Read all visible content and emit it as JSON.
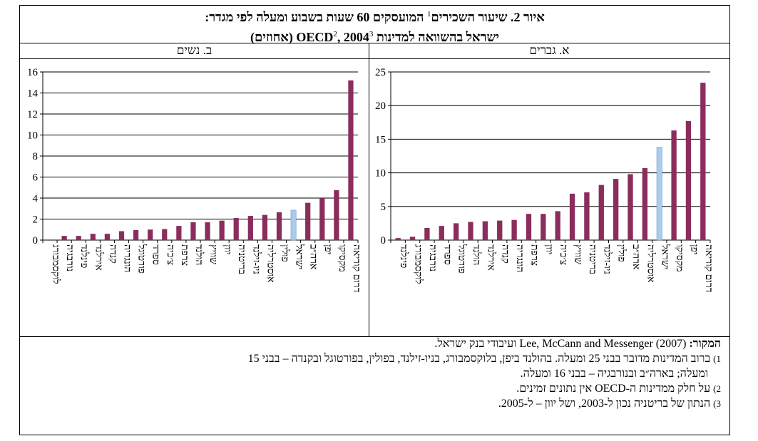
{
  "title": {
    "line1_main": "איור 2. שיעור השכירים",
    "line1_sup": "1",
    "line1_rest": " המועסקים 60 שעות בשבוע ומעלה לפי מגדר:",
    "line2_main": "ישראל בהשוואה למדינות OECD",
    "line2_sup1": "2",
    "line2_year": ", 2004",
    "line2_sup2": "3",
    "line2_rest": " (אחוזים)"
  },
  "panel_headers": {
    "men": "א. גברים",
    "women": "ב. נשים"
  },
  "colors": {
    "bar": "#8b2d5c",
    "highlight": "#a9cdef",
    "grid": "#000000"
  },
  "chart_data": [
    {
      "type": "bar",
      "title": "א. גברים",
      "ylim": [
        0,
        25
      ],
      "yticks": [
        0,
        5,
        10,
        15,
        20,
        25
      ],
      "grid": true,
      "highlight_category": "ישראל",
      "categories": [
        "פינלנד",
        "לוקסמבורג",
        "נורבגיה",
        "ספרד",
        "פורטוגל",
        "הולנד",
        "אירלנד",
        "קנדה",
        "הונגריה",
        "צרפת",
        "יוון",
        "צ׳כיה",
        "שוויץ",
        "בריטניה",
        "ניו-זילנד",
        "פולין",
        "ארה״ב",
        "אוסטרליה",
        "ישראל",
        "מקסיקו",
        "יפן",
        "דרום קוריאה"
      ],
      "values": [
        0.3,
        0.5,
        1.8,
        2.1,
        2.5,
        2.7,
        2.8,
        2.9,
        3.0,
        3.9,
        3.9,
        4.3,
        6.9,
        7.1,
        8.2,
        9.1,
        9.8,
        10.7,
        13.8,
        16.3,
        17.7,
        23.4
      ]
    },
    {
      "type": "bar",
      "title": "ב. נשים",
      "ylim": [
        0,
        16
      ],
      "yticks": [
        0,
        2,
        4,
        6,
        8,
        10,
        12,
        14,
        16
      ],
      "grid": true,
      "highlight_category": "ישראל",
      "categories": [
        "לוקסמבורג",
        "נורבגיה",
        "פינלנד",
        "אירלנד",
        "קנדה",
        "הונגריה",
        "פורטוגל",
        "ספרד",
        "צ׳כיה",
        "צרפת",
        "הולנד",
        "שוויץ",
        "יוון",
        "בריטניה",
        "ניו-זילנד",
        "אוסטרליה",
        "פולין",
        "ישראל",
        "ארה״ב",
        "יפן",
        "מקסיקו",
        "דרום קוריאה"
      ],
      "values": [
        0.05,
        0.4,
        0.4,
        0.6,
        0.6,
        0.85,
        0.95,
        1.0,
        1.05,
        1.35,
        1.7,
        1.7,
        1.85,
        2.1,
        2.3,
        2.4,
        2.65,
        2.85,
        3.55,
        4.0,
        4.75,
        15.2
      ]
    }
  ],
  "notes": {
    "source_label": "המקור:",
    "source_text": " Lee, McCann and Messenger (2007) ועיבודי בנק ישראל.",
    "n1_num": "1)",
    "n1_text": " ברוב המדינות מדובר בבני 25 ומעלה. בהולנד ביפן, בלוקסמבורג, בניו-זילנד, בפולין, בפורטוגל ובקנדה – בבני 15",
    "n1_cont": "ומעלה; בארה״ב ובנורבגיה – בבני 16 ומעלה.",
    "n2_num": "2)",
    "n2_text": " על חלק ממדינות ה-OECD אין נתונים זמינים.",
    "n3_num": "3)",
    "n3_text": " הנתון של בריטניה נכון ל-2003, ושל יוון – ל-2005."
  }
}
